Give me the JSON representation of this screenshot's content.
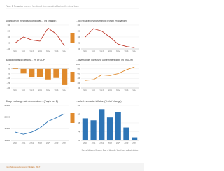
{
  "caption": "Figure 1: Mongolia's economy has slowed down considerably since the mining boom",
  "source": "Source: Ministry of Finance; Bank of Mongolia; World Bank staff calculations.",
  "footer": "From Mongolia Economic Update, 2017",
  "chart_data": [
    {
      "type": "line",
      "title": "Slowdown in mining sector growth... (% change)",
      "categories": [
        "2010",
        "2011",
        "2012",
        "2013",
        "2014",
        "2015",
        "2016"
      ],
      "values": [
        0,
        10,
        5,
        3,
        25,
        15,
        -5
      ],
      "color": "#c0392b",
      "ylim": [
        -10,
        30
      ],
      "yticks": [
        -10,
        0,
        10,
        20,
        30
      ],
      "grid": true
    },
    {
      "type": "line",
      "title": "...not replaced by non-mining growth (% change)",
      "categories": [
        "2010",
        "2011",
        "2012",
        "2013",
        "2014",
        "2015",
        "2016"
      ],
      "values": [
        10,
        17,
        15,
        10,
        4,
        2,
        1
      ],
      "color": "#c0392b",
      "ylim": [
        0,
        20
      ],
      "yticks": [
        0,
        5,
        10,
        15,
        20
      ],
      "grid": true
    },
    {
      "type": "bar",
      "title": "Ballooning fiscal deficits... (% of GDP)",
      "categories": [
        "2010",
        "2011",
        "2012",
        "2013",
        "2014",
        "2015",
        "2016"
      ],
      "values": [
        0.5,
        -4.8,
        -9.0,
        -8.8,
        -11.0,
        -9.5,
        -17.0
      ],
      "color": "#e08a2c",
      "ylim": [
        -20,
        5
      ],
      "yticks": [
        -20,
        -15,
        -10,
        -5,
        0,
        5
      ],
      "grid": true
    },
    {
      "type": "line",
      "title": "...have rapidly increased Government debt (% of GDP)",
      "categories": [
        "2010",
        "2011",
        "2012",
        "2013",
        "2014",
        "2015",
        "2016"
      ],
      "values": [
        32,
        35,
        55,
        52,
        60,
        76,
        88
      ],
      "color": "#e08a2c",
      "ylim": [
        0,
        100
      ],
      "yticks": [
        0,
        20,
        40,
        60,
        80,
        100
      ],
      "grid": true
    },
    {
      "type": "line",
      "title": "Sharp exchange rate depreciation... (Tugrik per $)",
      "categories": [
        "2010",
        "2011",
        "2012",
        "2013",
        "2014",
        "2015",
        "2016"
      ],
      "values": [
        1357,
        1266,
        1358,
        1524,
        1818,
        1970,
        2146
      ],
      "color": "#2e75b6",
      "ylim": [
        1000,
        2500
      ],
      "yticks": [
        {
          "value": 1000,
          "label": "1,000"
        },
        {
          "value": 1500,
          "label": "1,500"
        },
        {
          "value": 2000,
          "label": "2,000"
        },
        {
          "value": 2500,
          "label": "2,500"
        }
      ],
      "grid": true
    },
    {
      "type": "bar",
      "title": "...called even after inflation (% YoY change)",
      "categories": [
        "2010",
        "2011",
        "2012",
        "2013",
        "2014",
        "2015",
        "2016"
      ],
      "values": [
        10.1,
        9.2,
        14.3,
        10.5,
        12.8,
        5.9,
        1.1
      ],
      "color": "#2e75b6",
      "ylim": [
        0,
        16
      ],
      "yticks": [
        0,
        4,
        8,
        12,
        16
      ],
      "grid": true
    }
  ]
}
